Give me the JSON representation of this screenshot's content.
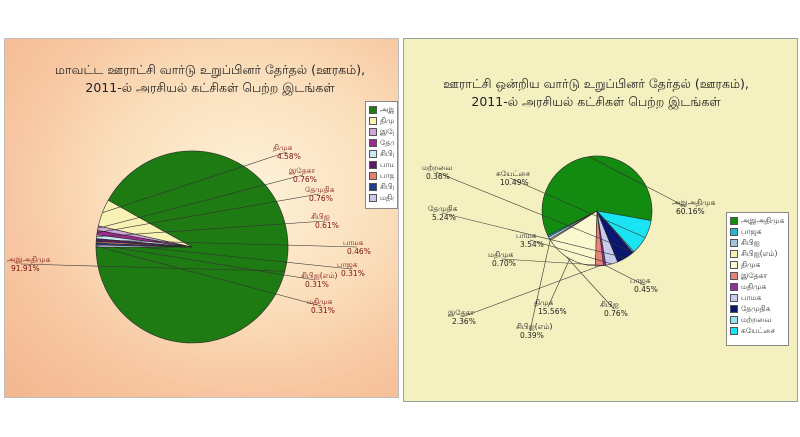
{
  "chart_data": [
    {
      "type": "pie",
      "title": "மாவட்ட ஊராட்சி வார்டு உறுப்பினர் தேர்தல் (ஊரகம்), 2011-ல் அரசியல் கட்சிகள் பெற்ற இடங்கள்",
      "legend_position": "right",
      "slices": [
        {
          "label": "அஇஅதிமுக",
          "value": 91.91,
          "display": "91.91%",
          "color": "#1e7a12",
          "show_label": true
        },
        {
          "label": "திமுக",
          "value": 4.58,
          "display": "4.58%",
          "color": "#f8f3b4",
          "show_label": true
        },
        {
          "label": "இதேகா",
          "value": 0.76,
          "display": "0.76%",
          "color": "#cfa7d6",
          "show_label": true
        },
        {
          "label": "தேமுதிக",
          "value": 0.76,
          "display": "0.76%",
          "color": "#a0288f",
          "show_label": true
        },
        {
          "label": "சிபிஐ",
          "value": 0.61,
          "display": "0.61%",
          "color": "#cce8f4",
          "show_label": true
        },
        {
          "label": "பாமக",
          "value": 0.46,
          "display": "0.46%",
          "color": "#5a1a66",
          "show_label": true
        },
        {
          "label": "பாஜக",
          "value": 0.31,
          "display": "0.31%",
          "color": "#e57c70",
          "show_label": true
        },
        {
          "label": "சிபிஐ(எம்)",
          "value": 0.31,
          "display": "0.31%",
          "color": "#1f3f8a",
          "show_label": true
        },
        {
          "label": "மதிமுக",
          "value": 0.31,
          "display": "0.31%",
          "color": "#c9c6ea",
          "show_label": true
        }
      ],
      "legend_entries": [
        "அஇஅதி",
        "திமுக",
        "இதேகா",
        "தேமுதிக",
        "சிபிஐ",
        "பாமக",
        "பாஜக",
        "சிபிஐ(எ",
        "மதிமுக"
      ]
    },
    {
      "type": "pie",
      "title": "ஊராட்சி ஒன்றிய வார்டு உறுப்பினர் தேர்தல் (ஊரகம்), 2011-ல் அரசியல் கட்சிகள் பெற்ற இடங்கள்",
      "legend_position": "right",
      "slices": [
        {
          "label": "அஇஅதிமுக",
          "value": 60.16,
          "display": "60.16%",
          "color": "#138a10",
          "show_label": true
        },
        {
          "label": "பாஜக",
          "value": 0.45,
          "display": "0.45%",
          "color": "#2bb5cf",
          "show_label": true
        },
        {
          "label": "சிபிஐ",
          "value": 0.76,
          "display": "0.76%",
          "color": "#a0c4e0",
          "show_label": true
        },
        {
          "label": "சிபிஐ(எம்)",
          "value": 0.39,
          "display": "0.39%",
          "color": "#f7f0b0",
          "show_label": true
        },
        {
          "label": "திமுக",
          "value": 15.56,
          "display": "15.56%",
          "color": "#fbf8cf",
          "show_label": true
        },
        {
          "label": "இதேகா",
          "value": 2.36,
          "display": "2.36%",
          "color": "#e8827a",
          "show_label": true
        },
        {
          "label": "மதிமுக",
          "value": 0.7,
          "display": "0.70%",
          "color": "#8f2f9a",
          "show_label": true
        },
        {
          "label": "பாமக",
          "value": 3.54,
          "display": "3.54%",
          "color": "#c7ccec",
          "show_label": true
        },
        {
          "label": "தேமுதிக",
          "value": 5.24,
          "display": "5.24%",
          "color": "#0b1670",
          "show_label": true
        },
        {
          "label": "மற்றவை",
          "value": 0.36,
          "display": "0.36%",
          "color": "#8fe6f2",
          "show_label": true
        },
        {
          "label": "சுயேட்சை",
          "value": 10.49,
          "display": "10.49%",
          "color": "#1ae3f3",
          "show_label": true
        }
      ],
      "legend_entries": [
        "அஇஅதிமுக",
        "பாஜக",
        "சிபிஐ",
        "சிபிஐ(எம்)",
        "திமுக",
        "இதேகா",
        "மதிமுக",
        "பாமக",
        "தேமுதிக",
        "மற்றவை",
        "சுயேட்சை"
      ]
    }
  ]
}
